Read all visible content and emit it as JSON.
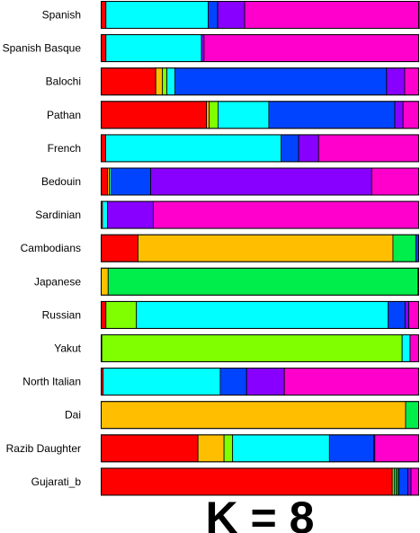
{
  "chart_data": {
    "type": "bar",
    "orientation": "horizontal",
    "stacked": true,
    "title": "K = 8",
    "categories": [
      "Spanish",
      "Spanish Basque",
      "Balochi",
      "Pathan",
      "French",
      "Bedouin",
      "Sardinian",
      "Cambodians",
      "Japanese",
      "Russian",
      "Yakut",
      "North Italian",
      "Dai",
      "Razib Daughter",
      "Gujarati_b"
    ],
    "xlim": [
      0,
      1
    ],
    "grid": false,
    "legend": "none",
    "series": [
      {
        "color": "#ff0000",
        "values": [
          0.015,
          0.015,
          0.172,
          0.332,
          0.014,
          0.02,
          0.004,
          0.116,
          0.0,
          0.015,
          0.0,
          0.006,
          0.0,
          0.305,
          0.917
        ]
      },
      {
        "color": "#ffbf00",
        "values": [
          0.0,
          0.0,
          0.021,
          0.008,
          0.0,
          0.006,
          0.0,
          0.803,
          0.022,
          0.0,
          0.002,
          0.0,
          0.959,
          0.082,
          0.006
        ]
      },
      {
        "color": "#00ee4c",
        "values": [
          0.0,
          0.0,
          0.0,
          0.0,
          0.0,
          0.0,
          0.0,
          0.072,
          0.976,
          0.0,
          0.0,
          0.0,
          0.041,
          0.0,
          0.007
        ]
      },
      {
        "color": "#80ff00",
        "values": [
          0.0,
          0.0,
          0.014,
          0.028,
          0.0,
          0.0,
          0.0,
          0.0,
          0.0,
          0.096,
          0.946,
          0.0,
          0.0,
          0.027,
          0.004
        ]
      },
      {
        "color": "#00ffff",
        "values": [
          0.322,
          0.301,
          0.025,
          0.16,
          0.553,
          0.006,
          0.016,
          0.0,
          0.0,
          0.793,
          0.025,
          0.369,
          0.0,
          0.305,
          0.004
        ]
      },
      {
        "color": "#0044ff",
        "values": [
          0.03,
          0.0,
          0.667,
          0.397,
          0.055,
          0.124,
          0.0,
          0.009,
          0.0,
          0.053,
          0.0,
          0.083,
          0.0,
          0.139,
          0.028
        ]
      },
      {
        "color": "#8800ff",
        "values": [
          0.085,
          0.008,
          0.057,
          0.026,
          0.063,
          0.696,
          0.144,
          0.0,
          0.0,
          0.012,
          0.0,
          0.119,
          0.0,
          0.004,
          0.01
        ]
      },
      {
        "color": "#ff00cc",
        "values": [
          0.553,
          0.676,
          0.044,
          0.049,
          0.315,
          0.148,
          0.836,
          0.0,
          0.002,
          0.031,
          0.027,
          0.423,
          0.0,
          0.138,
          0.024
        ]
      }
    ]
  }
}
